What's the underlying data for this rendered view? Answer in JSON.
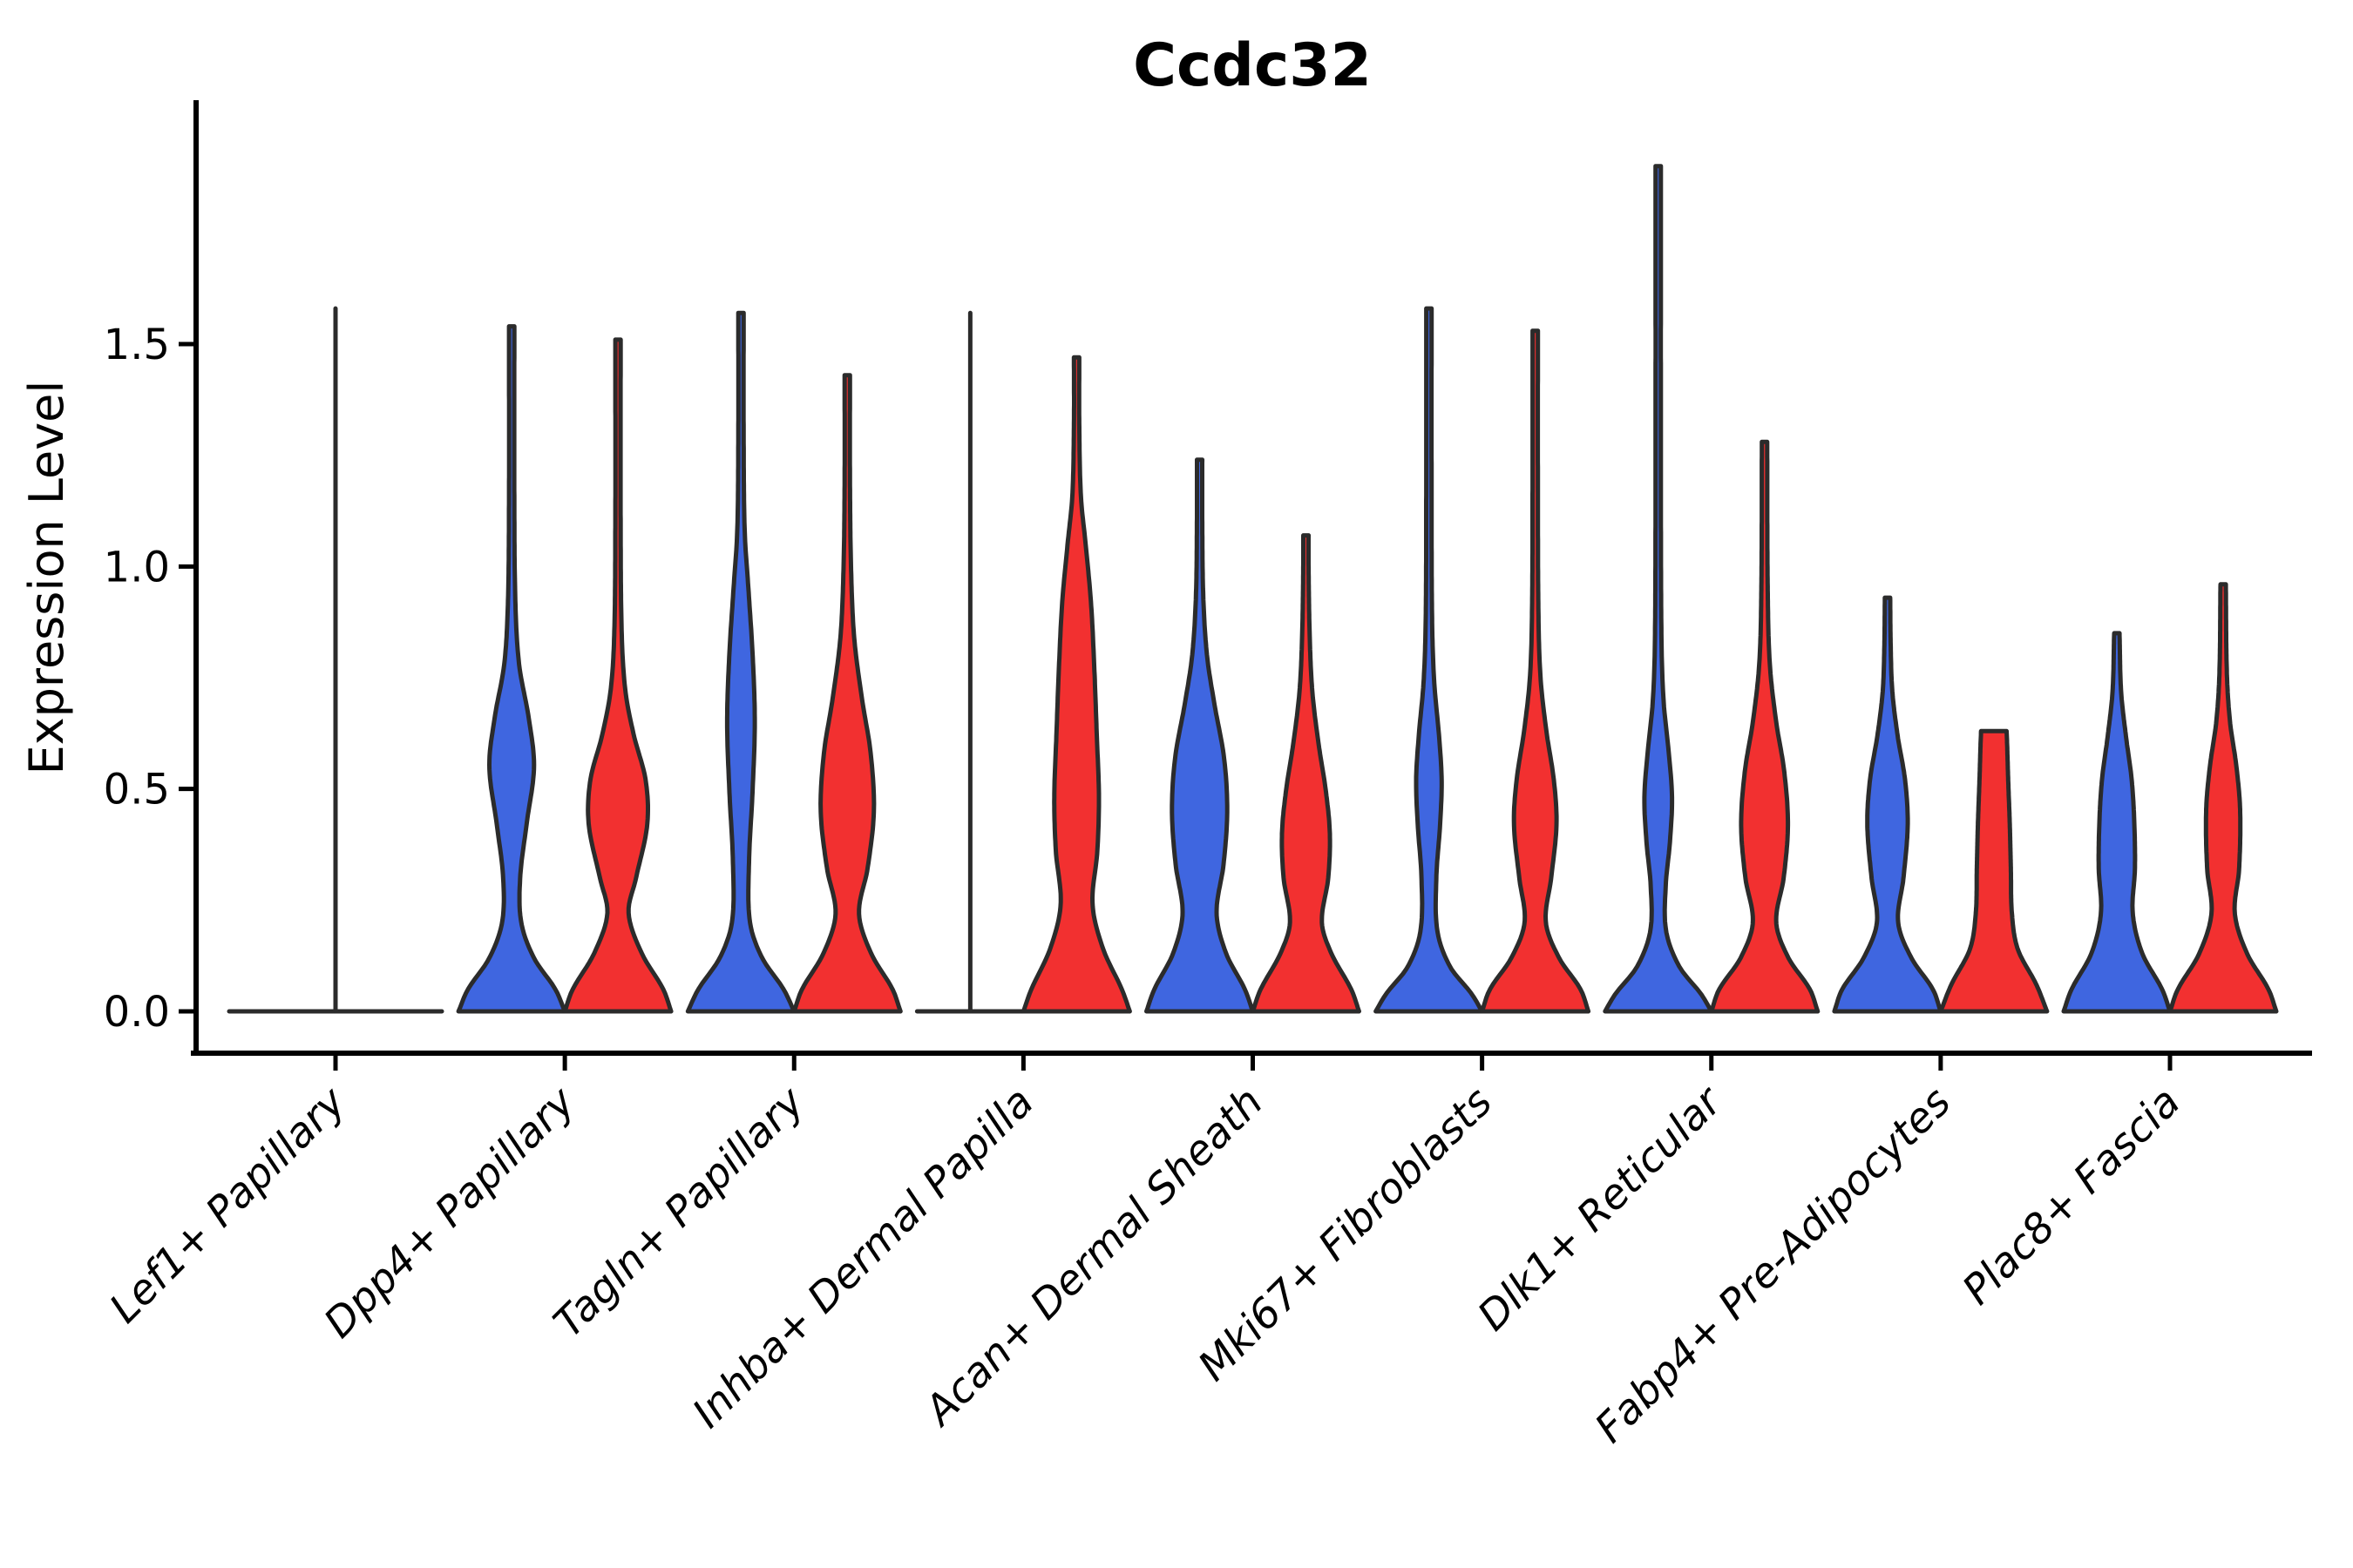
{
  "chart_data": {
    "type": "violin",
    "title": "Ccdc32",
    "ylabel": "Expression Level",
    "xlabel": "",
    "legend": false,
    "grid": false,
    "ylim": [
      -0.09,
      1.97
    ],
    "ytick_labels": [
      "0.0",
      "0.5",
      "1.0",
      "1.5"
    ],
    "ytick_values": [
      0,
      0.5,
      1.0,
      1.5
    ],
    "colors": {
      "group_blue": "#3F66E0",
      "group_red": "#F23030",
      "outline": "#2B2B2B",
      "axis": "#000000"
    },
    "categories": [
      "Lef1+ Papillary",
      "Dpp4+ Papillary",
      "Tagln+ Papillary",
      "Inhba+ Dermal Papilla",
      "Acan+ Dermal Sheath",
      "Mki67+ Fibroblasts",
      "Dlk1+ Reticular",
      "Fabp4+ Pre-Adipocytes",
      "Plac8+ Fascia"
    ],
    "series": [
      {
        "category": "Lef1+ Papillary",
        "violins": [
          {
            "group": "blue",
            "kind": "flat",
            "max": 0.0
          },
          {
            "group": "red",
            "kind": "flat",
            "max": 0.0
          }
        ],
        "spike": {
          "dx_slots": 0,
          "top": 1.58
        }
      },
      {
        "category": "Dpp4+ Papillary",
        "violins": [
          {
            "group": "blue",
            "kind": "violin",
            "max": 1.54,
            "bulge_center": 0.55,
            "profile": [
              [
                0,
                1
              ],
              [
                0.05,
                0.82
              ],
              [
                0.12,
                0.42
              ],
              [
                0.2,
                0.18
              ],
              [
                0.3,
                0.16
              ],
              [
                0.42,
                0.28
              ],
              [
                0.55,
                0.42
              ],
              [
                0.66,
                0.32
              ],
              [
                0.78,
                0.14
              ],
              [
                0.92,
                0.07
              ],
              [
                1.15,
                0.05
              ],
              [
                1.54,
                0.05
              ]
            ]
          },
          {
            "group": "red",
            "kind": "violin",
            "max": 1.51,
            "bulge_center": 0.46,
            "profile": [
              [
                0,
                1
              ],
              [
                0.05,
                0.85
              ],
              [
                0.13,
                0.45
              ],
              [
                0.22,
                0.2
              ],
              [
                0.3,
                0.34
              ],
              [
                0.42,
                0.55
              ],
              [
                0.52,
                0.52
              ],
              [
                0.62,
                0.3
              ],
              [
                0.72,
                0.14
              ],
              [
                0.85,
                0.07
              ],
              [
                1.1,
                0.05
              ],
              [
                1.51,
                0.05
              ]
            ]
          }
        ]
      },
      {
        "category": "Tagln+ Papillary",
        "violins": [
          {
            "group": "blue",
            "kind": "violin",
            "max": 1.57,
            "bulge_center": 0.62,
            "profile": [
              [
                0,
                1
              ],
              [
                0.05,
                0.8
              ],
              [
                0.12,
                0.4
              ],
              [
                0.2,
                0.17
              ],
              [
                0.33,
                0.15
              ],
              [
                0.5,
                0.22
              ],
              [
                0.65,
                0.26
              ],
              [
                0.8,
                0.22
              ],
              [
                0.95,
                0.14
              ],
              [
                1.08,
                0.07
              ],
              [
                1.3,
                0.05
              ],
              [
                1.57,
                0.05
              ]
            ]
          },
          {
            "group": "red",
            "kind": "violin",
            "max": 1.43,
            "bulge_center": 0.47,
            "profile": [
              [
                0,
                1
              ],
              [
                0.05,
                0.85
              ],
              [
                0.13,
                0.45
              ],
              [
                0.22,
                0.22
              ],
              [
                0.32,
                0.38
              ],
              [
                0.45,
                0.5
              ],
              [
                0.58,
                0.44
              ],
              [
                0.7,
                0.28
              ],
              [
                0.84,
                0.13
              ],
              [
                1.0,
                0.07
              ],
              [
                1.2,
                0.05
              ],
              [
                1.43,
                0.05
              ]
            ]
          }
        ]
      },
      {
        "category": "Inhba+ Dermal Papilla",
        "violins": [
          {
            "group": "blue",
            "kind": "flat",
            "max": 0.0
          },
          {
            "group": "red",
            "kind": "violin",
            "max": 1.47,
            "bulge_center": 0.48,
            "profile": [
              [
                0,
                1
              ],
              [
                0.05,
                0.85
              ],
              [
                0.14,
                0.5
              ],
              [
                0.24,
                0.3
              ],
              [
                0.36,
                0.39
              ],
              [
                0.48,
                0.42
              ],
              [
                0.62,
                0.38
              ],
              [
                0.78,
                0.33
              ],
              [
                0.92,
                0.27
              ],
              [
                1.05,
                0.17
              ],
              [
                1.16,
                0.08
              ],
              [
                1.32,
                0.05
              ],
              [
                1.47,
                0.05
              ]
            ]
          }
        ],
        "spike": {
          "dx_slots": -1,
          "top": 1.57
        }
      },
      {
        "category": "Acan+ Dermal Sheath",
        "violins": [
          {
            "group": "blue",
            "kind": "violin",
            "max": 1.24,
            "bulge_center": 0.5,
            "profile": [
              [
                0,
                1
              ],
              [
                0.05,
                0.85
              ],
              [
                0.13,
                0.5
              ],
              [
                0.22,
                0.32
              ],
              [
                0.33,
                0.45
              ],
              [
                0.45,
                0.52
              ],
              [
                0.57,
                0.46
              ],
              [
                0.69,
                0.28
              ],
              [
                0.8,
                0.14
              ],
              [
                0.93,
                0.07
              ],
              [
                1.1,
                0.05
              ],
              [
                1.24,
                0.05
              ]
            ]
          },
          {
            "group": "red",
            "kind": "violin",
            "max": 1.07,
            "bulge_center": 0.4,
            "profile": [
              [
                0,
                1
              ],
              [
                0.05,
                0.85
              ],
              [
                0.13,
                0.48
              ],
              [
                0.2,
                0.3
              ],
              [
                0.3,
                0.42
              ],
              [
                0.4,
                0.45
              ],
              [
                0.5,
                0.37
              ],
              [
                0.6,
                0.24
              ],
              [
                0.72,
                0.12
              ],
              [
                0.85,
                0.07
              ],
              [
                1.0,
                0.05
              ],
              [
                1.07,
                0.05
              ]
            ]
          }
        ]
      },
      {
        "category": "Mki67+ Fibroblasts",
        "violins": [
          {
            "group": "blue",
            "kind": "violin",
            "max": 1.58,
            "bulge_center": 0.52,
            "profile": [
              [
                0,
                1
              ],
              [
                0.04,
                0.8
              ],
              [
                0.1,
                0.4
              ],
              [
                0.18,
                0.16
              ],
              [
                0.3,
                0.14
              ],
              [
                0.42,
                0.21
              ],
              [
                0.52,
                0.24
              ],
              [
                0.62,
                0.19
              ],
              [
                0.74,
                0.1
              ],
              [
                0.88,
                0.06
              ],
              [
                1.2,
                0.05
              ],
              [
                1.58,
                0.05
              ]
            ]
          },
          {
            "group": "red",
            "kind": "violin",
            "max": 1.53,
            "bulge_center": 0.42,
            "profile": [
              [
                0,
                1
              ],
              [
                0.05,
                0.85
              ],
              [
                0.12,
                0.45
              ],
              [
                0.2,
                0.2
              ],
              [
                0.3,
                0.3
              ],
              [
                0.42,
                0.4
              ],
              [
                0.52,
                0.35
              ],
              [
                0.63,
                0.21
              ],
              [
                0.75,
                0.1
              ],
              [
                0.9,
                0.06
              ],
              [
                1.2,
                0.05
              ],
              [
                1.53,
                0.05
              ]
            ]
          }
        ]
      },
      {
        "category": "Dlk1+ Reticular",
        "violins": [
          {
            "group": "blue",
            "kind": "violin",
            "max": 1.9,
            "bulge_center": 0.48,
            "profile": [
              [
                0,
                1
              ],
              [
                0.04,
                0.8
              ],
              [
                0.1,
                0.4
              ],
              [
                0.18,
                0.15
              ],
              [
                0.28,
                0.14
              ],
              [
                0.38,
                0.22
              ],
              [
                0.48,
                0.26
              ],
              [
                0.58,
                0.2
              ],
              [
                0.7,
                0.1
              ],
              [
                0.85,
                0.06
              ],
              [
                1.3,
                0.05
              ],
              [
                1.9,
                0.05
              ]
            ]
          },
          {
            "group": "red",
            "kind": "violin",
            "max": 1.28,
            "bulge_center": 0.42,
            "profile": [
              [
                0,
                1
              ],
              [
                0.05,
                0.85
              ],
              [
                0.12,
                0.45
              ],
              [
                0.2,
                0.22
              ],
              [
                0.3,
                0.36
              ],
              [
                0.42,
                0.44
              ],
              [
                0.54,
                0.37
              ],
              [
                0.65,
                0.22
              ],
              [
                0.78,
                0.1
              ],
              [
                0.95,
                0.06
              ],
              [
                1.28,
                0.05
              ]
            ]
          }
        ]
      },
      {
        "category": "Fabp4+ Pre-Adipocytes",
        "violins": [
          {
            "group": "blue",
            "kind": "violin",
            "max": 0.93,
            "bulge_center": 0.42,
            "profile": [
              [
                0,
                1
              ],
              [
                0.05,
                0.85
              ],
              [
                0.12,
                0.45
              ],
              [
                0.2,
                0.2
              ],
              [
                0.3,
                0.3
              ],
              [
                0.42,
                0.38
              ],
              [
                0.52,
                0.33
              ],
              [
                0.62,
                0.19
              ],
              [
                0.72,
                0.09
              ],
              [
                0.82,
                0.06
              ],
              [
                0.93,
                0.05
              ]
            ]
          },
          {
            "group": "red",
            "kind": "violin",
            "max": 0.63,
            "bulge_center": 0.3,
            "blunt_top": true,
            "profile": [
              [
                0,
                1
              ],
              [
                0.06,
                0.8
              ],
              [
                0.14,
                0.45
              ],
              [
                0.22,
                0.34
              ],
              [
                0.32,
                0.32
              ],
              [
                0.42,
                0.3
              ],
              [
                0.52,
                0.27
              ],
              [
                0.6,
                0.25
              ],
              [
                0.63,
                0.24
              ]
            ]
          }
        ]
      },
      {
        "category": "Plac8+ Fascia",
        "violins": [
          {
            "group": "blue",
            "kind": "violin",
            "max": 0.85,
            "bulge_center": 0.38,
            "profile": [
              [
                0,
                1
              ],
              [
                0.05,
                0.85
              ],
              [
                0.13,
                0.48
              ],
              [
                0.22,
                0.3
              ],
              [
                0.32,
                0.34
              ],
              [
                0.42,
                0.33
              ],
              [
                0.52,
                0.28
              ],
              [
                0.62,
                0.17
              ],
              [
                0.72,
                0.08
              ],
              [
                0.85,
                0.05
              ]
            ]
          },
          {
            "group": "red",
            "kind": "violin",
            "max": 0.96,
            "bulge_center": 0.45,
            "profile": [
              [
                0,
                1
              ],
              [
                0.05,
                0.85
              ],
              [
                0.13,
                0.45
              ],
              [
                0.22,
                0.22
              ],
              [
                0.32,
                0.3
              ],
              [
                0.45,
                0.32
              ],
              [
                0.55,
                0.25
              ],
              [
                0.65,
                0.13
              ],
              [
                0.76,
                0.07
              ],
              [
                0.96,
                0.05
              ]
            ]
          }
        ]
      }
    ]
  }
}
